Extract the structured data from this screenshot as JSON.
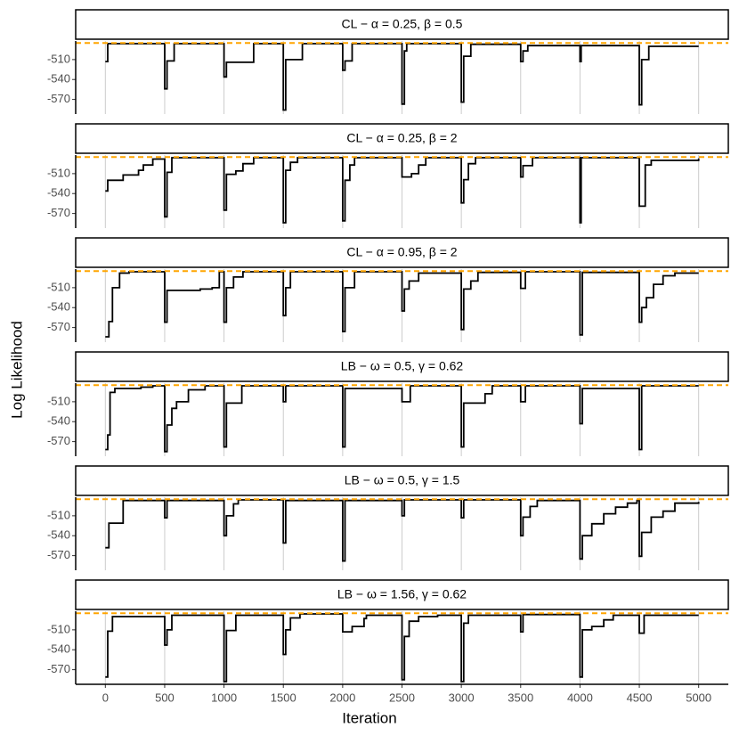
{
  "y_label": "Log Likelihood",
  "x_label": "Iteration",
  "chart_data": [
    {
      "type": "line",
      "title": "CL − α = 0.25, β = 0.5",
      "color": "#000000",
      "hline": {
        "value": -485,
        "color": "#FFA500"
      },
      "xlim": [
        -250,
        5250
      ],
      "xticks": [
        0,
        500,
        1000,
        1500,
        2000,
        2500,
        3000,
        3500,
        4000,
        4500,
        5000
      ],
      "ylim": [
        -592,
        -482
      ],
      "yticks": [
        -510,
        -540,
        -570
      ],
      "x": [
        0,
        20,
        500,
        520,
        580,
        1000,
        1020,
        1250,
        1500,
        1520,
        1660,
        2000,
        2020,
        2080,
        2500,
        2520,
        2540,
        3000,
        3020,
        3080,
        3500,
        3520,
        3560,
        4000,
        4010,
        4500,
        4520,
        4580,
        5000
      ],
      "values": [
        -513,
        -486,
        -554,
        -512,
        -486,
        -536,
        -514,
        -486,
        -586,
        -510,
        -486,
        -526,
        -512,
        -486,
        -577,
        -497,
        -486,
        -574,
        -505,
        -487,
        -513,
        -497,
        -489,
        -513,
        -489,
        -578,
        -510,
        -490,
        -490
      ]
    },
    {
      "type": "line",
      "title": "CL − α = 0.25, β = 2",
      "color": "#000000",
      "hline": {
        "value": -485,
        "color": "#FFA500"
      },
      "xlim": [
        -250,
        5250
      ],
      "xticks": [
        0,
        500,
        1000,
        1500,
        2000,
        2500,
        3000,
        3500,
        4000,
        4500,
        5000
      ],
      "ylim": [
        -592,
        -482
      ],
      "yticks": [
        -510,
        -540,
        -570
      ],
      "x": [
        0,
        20,
        150,
        280,
        320,
        400,
        500,
        520,
        560,
        1000,
        1020,
        1100,
        1160,
        1250,
        1500,
        1520,
        1560,
        1620,
        2000,
        2020,
        2060,
        2100,
        2500,
        2580,
        2640,
        2700,
        3000,
        3020,
        3060,
        3120,
        3500,
        3520,
        3600,
        4000,
        4010,
        4500,
        4550,
        4600,
        5000
      ],
      "values": [
        -536,
        -520,
        -512,
        -505,
        -497,
        -488,
        -575,
        -508,
        -486,
        -565,
        -511,
        -506,
        -495,
        -486,
        -584,
        -505,
        -493,
        -486,
        -581,
        -520,
        -497,
        -486,
        -515,
        -510,
        -497,
        -486,
        -554,
        -519,
        -495,
        -486,
        -515,
        -498,
        -486,
        -584,
        -486,
        -559,
        -497,
        -490,
        -487
      ]
    },
    {
      "type": "line",
      "title": "CL − α = 0.95, β = 2",
      "color": "#000000",
      "hline": {
        "value": -485,
        "color": "#FFA500"
      },
      "xlim": [
        -250,
        5250
      ],
      "xticks": [
        0,
        500,
        1000,
        1500,
        2000,
        2500,
        3000,
        3500,
        4000,
        4500,
        5000
      ],
      "ylim": [
        -592,
        -482
      ],
      "yticks": [
        -510,
        -540,
        -570
      ],
      "x": [
        0,
        30,
        60,
        120,
        200,
        500,
        520,
        800,
        900,
        960,
        1000,
        1020,
        1080,
        1160,
        1500,
        1520,
        1560,
        2000,
        2020,
        2100,
        2500,
        2520,
        2560,
        2640,
        3000,
        3020,
        3080,
        3140,
        3500,
        3540,
        4000,
        4020,
        4500,
        4520,
        4560,
        4620,
        4700,
        4800,
        5000
      ],
      "values": [
        -584,
        -561,
        -510,
        -488,
        -486,
        -562,
        -514,
        -512,
        -510,
        -486,
        -562,
        -510,
        -494,
        -486,
        -552,
        -510,
        -486,
        -576,
        -510,
        -486,
        -545,
        -512,
        -500,
        -488,
        -573,
        -512,
        -500,
        -487,
        -511,
        -486,
        -581,
        -487,
        -562,
        -540,
        -525,
        -505,
        -492,
        -488,
        -488
      ]
    },
    {
      "type": "line",
      "title": "LB − ω = 0.5, γ = 0.62",
      "color": "#000000",
      "hline": {
        "value": -485,
        "color": "#FFA500"
      },
      "xlim": [
        -250,
        5250
      ],
      "xticks": [
        0,
        500,
        1000,
        1500,
        2000,
        2500,
        3000,
        3500,
        4000,
        4500,
        5000
      ],
      "ylim": [
        -592,
        -482
      ],
      "yticks": [
        -510,
        -540,
        -570
      ],
      "x": [
        0,
        20,
        40,
        80,
        300,
        400,
        500,
        520,
        560,
        600,
        700,
        840,
        1000,
        1020,
        1150,
        1500,
        1520,
        2000,
        2020,
        2500,
        2570,
        3000,
        3020,
        3200,
        3260,
        3500,
        3540,
        4000,
        4020,
        4500,
        4520,
        5000
      ],
      "values": [
        -582,
        -560,
        -496,
        -490,
        -488,
        -486,
        -585,
        -545,
        -520,
        -510,
        -492,
        -486,
        -578,
        -512,
        -486,
        -510,
        -486,
        -578,
        -490,
        -510,
        -486,
        -578,
        -512,
        -498,
        -486,
        -510,
        -486,
        -543,
        -490,
        -582,
        -486,
        -486
      ]
    },
    {
      "type": "line",
      "title": "LB − ω = 0.5, γ = 1.5",
      "color": "#000000",
      "hline": {
        "value": -485,
        "color": "#FFA500"
      },
      "xlim": [
        -250,
        5250
      ],
      "xticks": [
        0,
        500,
        1000,
        1500,
        2000,
        2500,
        3000,
        3500,
        4000,
        4500,
        5000
      ],
      "ylim": [
        -592,
        -482
      ],
      "yticks": [
        -510,
        -540,
        -570
      ],
      "x": [
        0,
        30,
        150,
        500,
        520,
        1000,
        1020,
        1080,
        1120,
        1500,
        1520,
        2000,
        2020,
        2500,
        2520,
        3000,
        3020,
        3500,
        3520,
        3580,
        3640,
        4000,
        4020,
        4100,
        4200,
        4300,
        4400,
        4480,
        4500,
        4520,
        4600,
        4700,
        4800,
        5000
      ],
      "values": [
        -558,
        -521,
        -487,
        -513,
        -487,
        -540,
        -510,
        -492,
        -486,
        -551,
        -487,
        -578,
        -487,
        -510,
        -486,
        -513,
        -486,
        -540,
        -512,
        -496,
        -487,
        -575,
        -540,
        -522,
        -507,
        -497,
        -491,
        -487,
        -571,
        -535,
        -512,
        -503,
        -491,
        -489
      ]
    },
    {
      "type": "line",
      "title": "LB − ω = 1.56, γ = 0.62",
      "color": "#000000",
      "hline": {
        "value": -485,
        "color": "#FFA500"
      },
      "xlim": [
        -250,
        5250
      ],
      "xticks": [
        0,
        500,
        1000,
        1500,
        2000,
        2500,
        3000,
        3500,
        4000,
        4500,
        5000
      ],
      "ylim": [
        -592,
        -482
      ],
      "yticks": [
        -510,
        -540,
        -570
      ],
      "x": [
        0,
        20,
        60,
        500,
        520,
        560,
        1000,
        1020,
        1100,
        1500,
        1520,
        1560,
        1640,
        2000,
        2080,
        2180,
        2200,
        2500,
        2520,
        2560,
        2640,
        2800,
        3000,
        3020,
        3060,
        3500,
        3520,
        4000,
        4020,
        4100,
        4200,
        4280,
        4500,
        4540,
        5000
      ],
      "values": [
        -581,
        -512,
        -490,
        -533,
        -510,
        -488,
        -588,
        -511,
        -488,
        -547,
        -510,
        -492,
        -486,
        -513,
        -505,
        -493,
        -488,
        -585,
        -520,
        -497,
        -490,
        -488,
        -588,
        -500,
        -488,
        -513,
        -487,
        -581,
        -510,
        -505,
        -495,
        -488,
        -515,
        -488,
        -488
      ]
    }
  ]
}
